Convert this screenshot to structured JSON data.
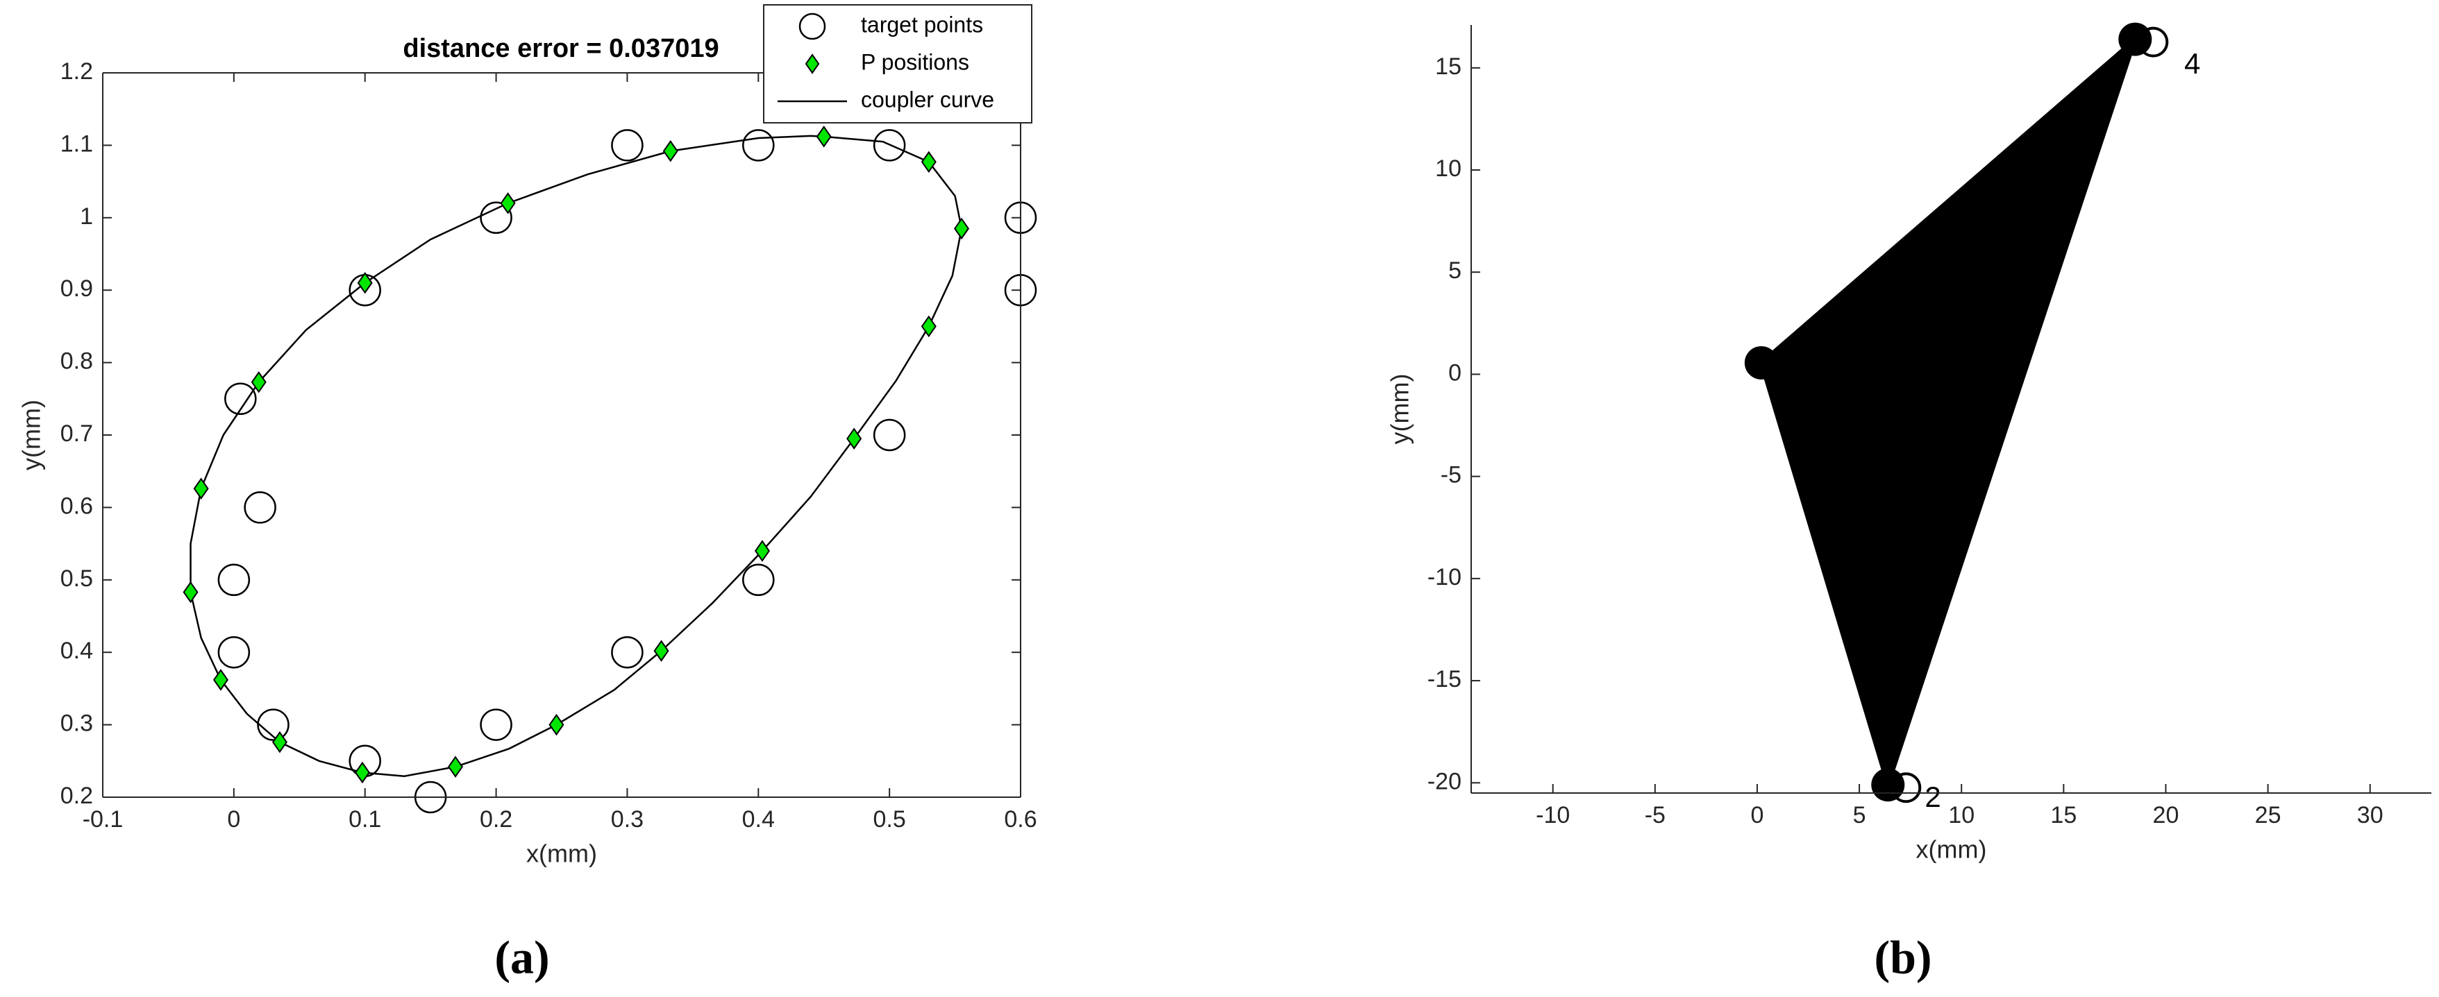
{
  "chart_data": [
    {
      "type": "scatter",
      "title": "distance error = 0.037019",
      "xlabel": "x(mm)",
      "ylabel": "y(mm)",
      "caption": "(a)",
      "xlim": [
        -0.1,
        0.6
      ],
      "ylim": [
        0.2,
        1.2
      ],
      "xticks": [
        -0.1,
        0,
        0.1,
        0.2,
        0.3,
        0.4,
        0.5,
        0.6
      ],
      "yticks": [
        0.2,
        0.3,
        0.4,
        0.5,
        0.6,
        0.7,
        0.8,
        0.9,
        1,
        1.1,
        1.2
      ],
      "legend": "upper right",
      "series": [
        {
          "name": "target points",
          "marker": "circle",
          "color": "#000000",
          "x": [
            0.3,
            0.4,
            0.5,
            0.6,
            0.6,
            0.2,
            0.1,
            0.005,
            0.02,
            0,
            0,
            0.03,
            0.1,
            0.15,
            0.2,
            0.3,
            0.4,
            0.5
          ],
          "y": [
            1.1,
            1.1,
            1.1,
            1.0,
            0.9,
            1.0,
            0.9,
            0.75,
            0.6,
            0.5,
            0.4,
            0.3,
            0.25,
            0.2,
            0.3,
            0.4,
            0.5,
            0.7
          ]
        },
        {
          "name": "P positions",
          "marker": "diamond",
          "color": "#00e600",
          "x": [
            0.45,
            0.333,
            0.53,
            0.555,
            0.53,
            0.473,
            0.403,
            0.326,
            0.246,
            0.169,
            0.098,
            0.035,
            -0.01,
            -0.033,
            -0.025,
            0.019,
            0.1,
            0.209
          ],
          "y": [
            1.112,
            1.092,
            1.077,
            0.985,
            0.85,
            0.695,
            0.54,
            0.402,
            0.3,
            0.242,
            0.234,
            0.276,
            0.362,
            0.483,
            0.626,
            0.773,
            0.91,
            1.02
          ]
        },
        {
          "name": "coupler curve",
          "marker": "line",
          "color": "#000000",
          "x": [
            0.44,
            0.4,
            0.333,
            0.27,
            0.209,
            0.15,
            0.1,
            0.055,
            0.019,
            -0.008,
            -0.025,
            -0.033,
            -0.033,
            -0.025,
            -0.01,
            0.01,
            0.035,
            0.065,
            0.098,
            0.13,
            0.169,
            0.21,
            0.246,
            0.29,
            0.326,
            0.365,
            0.403,
            0.44,
            0.473,
            0.505,
            0.53,
            0.548,
            0.555,
            0.55,
            0.53,
            0.495,
            0.45,
            0.44
          ],
          "y": [
            1.113,
            1.11,
            1.092,
            1.06,
            1.02,
            0.97,
            0.91,
            0.845,
            0.773,
            0.7,
            0.626,
            0.55,
            0.483,
            0.42,
            0.362,
            0.315,
            0.276,
            0.25,
            0.234,
            0.229,
            0.242,
            0.267,
            0.3,
            0.348,
            0.402,
            0.468,
            0.54,
            0.615,
            0.695,
            0.775,
            0.85,
            0.92,
            0.985,
            1.03,
            1.077,
            1.105,
            1.112,
            1.113
          ]
        }
      ]
    },
    {
      "type": "polygon",
      "xlabel": "x(mm)",
      "ylabel": "y(mm)",
      "caption": "(b)",
      "xlim": [
        -14,
        33
      ],
      "ylim": [
        -20.5,
        17.1
      ],
      "xticks": [
        -10,
        -5,
        0,
        5,
        10,
        15,
        20,
        25,
        30
      ],
      "yticks": [
        -20,
        -15,
        -10,
        -5,
        0,
        5,
        10,
        15
      ],
      "color": "#000000",
      "x": [
        0.2,
        18.5,
        6.4
      ],
      "y": [
        0.56,
        16.4,
        -20.1
      ],
      "annotations": [
        {
          "text": "2",
          "x": 8.6,
          "y": -20.8
        },
        {
          "text": "4",
          "x": 21.3,
          "y": 15.1
        }
      ]
    }
  ]
}
